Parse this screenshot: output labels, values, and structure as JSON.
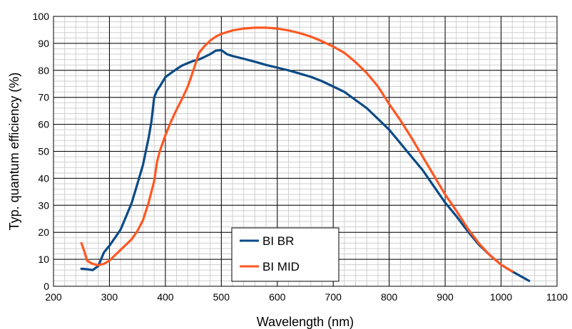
{
  "chart_data": {
    "type": "line",
    "title": "",
    "xlabel": "Wavelength (nm)",
    "ylabel": "Typ. quantum efficiency (%)",
    "xlim": [
      200,
      1100
    ],
    "ylim": [
      0,
      100
    ],
    "xticks": [
      200,
      300,
      400,
      500,
      600,
      700,
      800,
      900,
      1000,
      1100
    ],
    "yticks": [
      0,
      10,
      20,
      30,
      40,
      50,
      60,
      70,
      80,
      90,
      100
    ],
    "xtick_labels": [
      "200",
      "300",
      "400",
      "500",
      "600",
      "700",
      "800",
      "900",
      "1000",
      "1100"
    ],
    "ytick_labels": [
      "0",
      "10",
      "20",
      "30",
      "40",
      "50",
      "60",
      "70",
      "80",
      "90",
      "100"
    ],
    "x_minor_step": 20,
    "y_minor_step": 2,
    "grid": true,
    "legend_position": "bottom-center",
    "series": [
      {
        "name": "BI BR",
        "color": "#0b4a86",
        "points": [
          [
            250,
            6.5
          ],
          [
            260,
            6.3
          ],
          [
            270,
            6.0
          ],
          [
            280,
            7.5
          ],
          [
            290,
            12.5
          ],
          [
            300,
            15
          ],
          [
            310,
            18
          ],
          [
            320,
            21
          ],
          [
            330,
            26
          ],
          [
            340,
            31
          ],
          [
            350,
            38
          ],
          [
            360,
            45
          ],
          [
            370,
            55
          ],
          [
            375,
            61
          ],
          [
            380,
            70
          ],
          [
            385,
            72.5
          ],
          [
            390,
            74
          ],
          [
            400,
            77.5
          ],
          [
            410,
            79
          ],
          [
            420,
            80.5
          ],
          [
            430,
            81.8
          ],
          [
            440,
            82.7
          ],
          [
            450,
            83.5
          ],
          [
            460,
            84
          ],
          [
            470,
            85
          ],
          [
            480,
            86
          ],
          [
            490,
            87.3
          ],
          [
            500,
            87.5
          ],
          [
            510,
            86
          ],
          [
            520,
            85.3
          ],
          [
            540,
            84.3
          ],
          [
            560,
            83.2
          ],
          [
            580,
            82
          ],
          [
            600,
            81
          ],
          [
            620,
            80
          ],
          [
            640,
            78.8
          ],
          [
            660,
            77.6
          ],
          [
            680,
            76
          ],
          [
            700,
            74
          ],
          [
            720,
            72
          ],
          [
            740,
            69
          ],
          [
            760,
            66
          ],
          [
            780,
            62
          ],
          [
            800,
            58
          ],
          [
            820,
            53
          ],
          [
            840,
            48
          ],
          [
            860,
            43
          ],
          [
            880,
            37
          ],
          [
            900,
            31
          ],
          [
            920,
            26
          ],
          [
            940,
            20.5
          ],
          [
            960,
            15.5
          ],
          [
            980,
            11.5
          ],
          [
            1000,
            8
          ],
          [
            1020,
            5.5
          ],
          [
            1050,
            2
          ]
        ]
      },
      {
        "name": "BI MID",
        "color": "#ff5722",
        "points": [
          [
            250,
            16
          ],
          [
            255,
            13
          ],
          [
            260,
            9.5
          ],
          [
            265,
            8.8
          ],
          [
            270,
            8.3
          ],
          [
            280,
            7.8
          ],
          [
            290,
            8.3
          ],
          [
            300,
            9.5
          ],
          [
            310,
            11.5
          ],
          [
            320,
            13.5
          ],
          [
            330,
            15.5
          ],
          [
            340,
            17.5
          ],
          [
            350,
            20.5
          ],
          [
            360,
            24.5
          ],
          [
            370,
            31
          ],
          [
            380,
            39
          ],
          [
            385,
            46
          ],
          [
            390,
            50
          ],
          [
            400,
            56
          ],
          [
            410,
            61
          ],
          [
            420,
            65.5
          ],
          [
            430,
            69.5
          ],
          [
            440,
            74
          ],
          [
            450,
            80
          ],
          [
            460,
            86.5
          ],
          [
            470,
            89
          ],
          [
            480,
            91
          ],
          [
            490,
            92.5
          ],
          [
            500,
            93.5
          ],
          [
            520,
            94.8
          ],
          [
            540,
            95.5
          ],
          [
            560,
            95.8
          ],
          [
            580,
            95.8
          ],
          [
            600,
            95.5
          ],
          [
            620,
            94.8
          ],
          [
            640,
            93.8
          ],
          [
            660,
            92.5
          ],
          [
            680,
            90.8
          ],
          [
            700,
            88.8
          ],
          [
            720,
            86.5
          ],
          [
            740,
            83
          ],
          [
            760,
            79
          ],
          [
            780,
            74
          ],
          [
            800,
            67.5
          ],
          [
            820,
            61.5
          ],
          [
            840,
            55
          ],
          [
            860,
            48
          ],
          [
            880,
            41
          ],
          [
            900,
            34
          ],
          [
            920,
            28
          ],
          [
            940,
            21.5
          ],
          [
            960,
            16
          ],
          [
            980,
            11.5
          ],
          [
            1000,
            8
          ],
          [
            1020,
            5.5
          ]
        ]
      }
    ]
  }
}
